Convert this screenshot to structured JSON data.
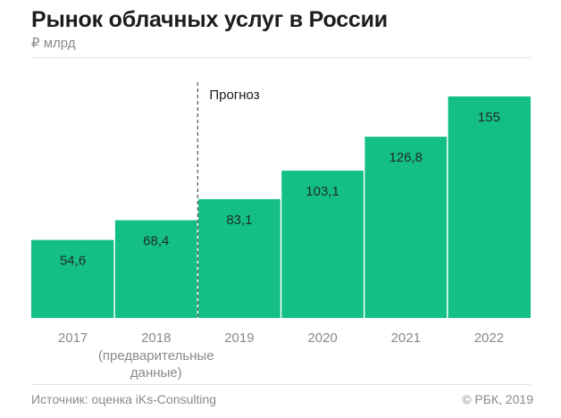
{
  "header": {
    "title": "Рынок облачных услуг в России",
    "subtitle": "₽ млрд"
  },
  "footer": {
    "source": "Источник: оценка iKs-Consulting",
    "copyright": "© РБК, 2019"
  },
  "colors": {
    "bar": "#14bf86",
    "value_text": "#1f2d28",
    "axis_text": "#8a8a8a",
    "forecast_line": "#333333"
  },
  "chart_data": {
    "type": "bar",
    "title": "Рынок облачных услуг в России",
    "ylabel": "₽ млрд",
    "categories": [
      "2017",
      "2018",
      "2019",
      "2020",
      "2021",
      "2022"
    ],
    "category_notes": [
      "",
      "(предварительные\nданные)",
      "",
      "",
      "",
      ""
    ],
    "values": [
      54.6,
      68.4,
      83.1,
      103.1,
      126.8,
      155
    ],
    "value_labels": [
      "54,6",
      "68,4",
      "83,1",
      "103,1",
      "126,8",
      "155"
    ],
    "ylim": [
      0,
      155
    ],
    "grid": false,
    "annotation": {
      "text": "Прогноз",
      "between_categories": [
        "2018",
        "2019"
      ],
      "style": "dashed-vertical-line"
    }
  }
}
